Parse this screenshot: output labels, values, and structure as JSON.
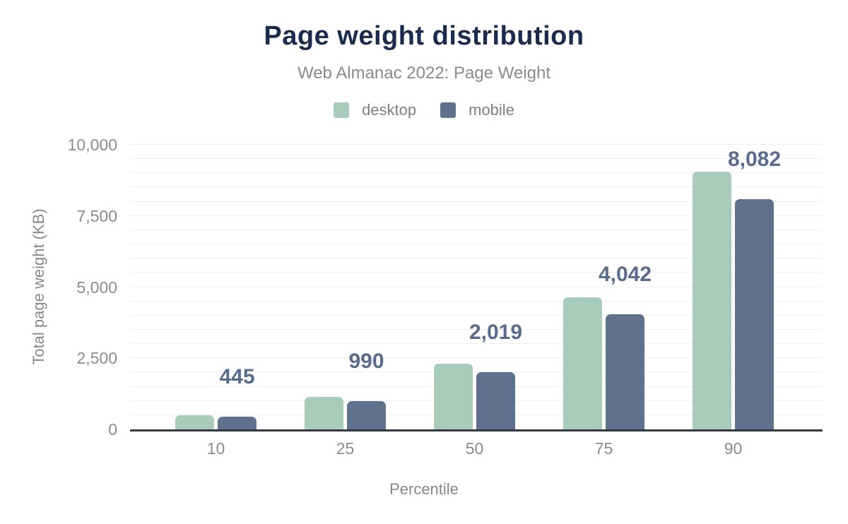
{
  "chart_data": {
    "type": "bar",
    "title": "Page weight distribution",
    "subtitle": "Web Almanac 2022: Page Weight",
    "xlabel": "Percentile",
    "ylabel": "Total page weight (KB)",
    "categories": [
      "10",
      "25",
      "50",
      "75",
      "90"
    ],
    "series": [
      {
        "name": "desktop",
        "color": "#a8cbbc",
        "values": [
          500,
          1150,
          2300,
          4630,
          9060
        ]
      },
      {
        "name": "mobile",
        "color": "#5f718c",
        "values": [
          445,
          990,
          2019,
          4042,
          8082
        ],
        "labels": [
          "445",
          "990",
          "2,019",
          "4,042",
          "8,082"
        ]
      }
    ],
    "ylim": [
      0,
      10000
    ],
    "yticks": [
      0,
      2500,
      5000,
      7500,
      10000
    ],
    "ytick_labels": [
      "0",
      "2,500",
      "5,000",
      "7,500",
      "10,000"
    ],
    "grid": "horizontal",
    "grid_interval": 500,
    "legend_position": "top",
    "labeled_series": "mobile",
    "label_color": "#5a6c8c"
  },
  "colors": {
    "title": "#1a2b4d",
    "muted_text": "#878b91",
    "tick_text": "#888c92",
    "legend_text": "#7c8086",
    "data_label": "#5a6c8c",
    "axis_line": "#343a40",
    "gridline": "#edeff1",
    "desktop": "#a8cbbc",
    "mobile": "#5f718c"
  }
}
